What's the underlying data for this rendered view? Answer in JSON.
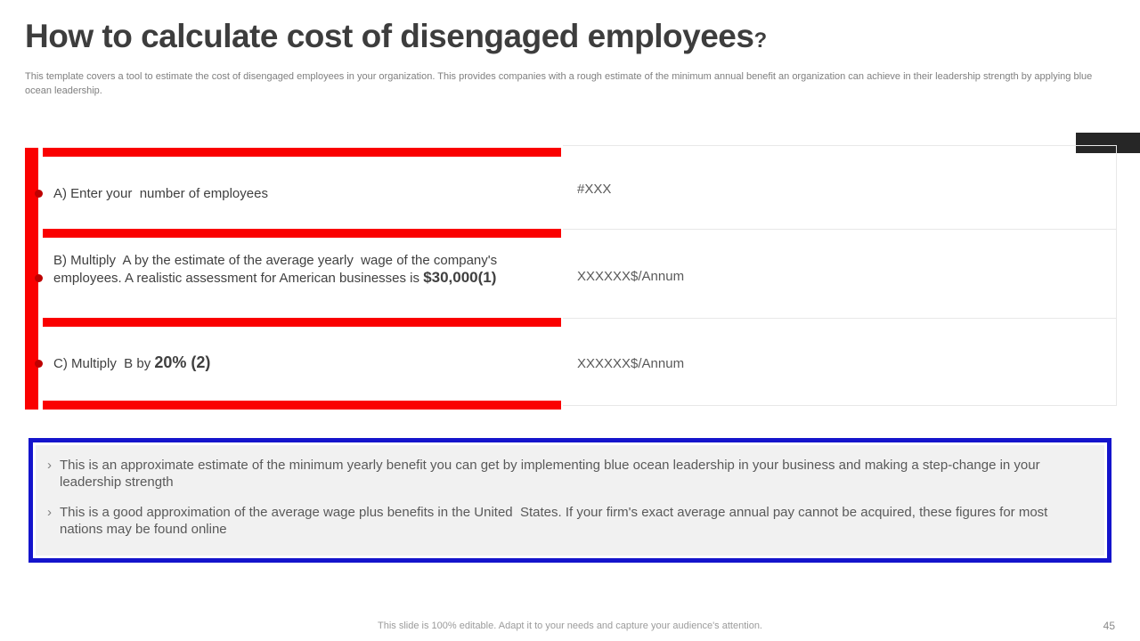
{
  "slide": {
    "title": "How to calculate cost of disengaged employees",
    "title_question_mark": "?",
    "subtitle": "This template covers a tool to estimate the cost of disengaged employees in your organization. This provides companies with a rough estimate of the minimum annual benefit an organization can achieve in their leadership strength by  applying blue ocean leadership.",
    "footer_note": "This slide is 100% editable. Adapt it to your needs and capture your audience's attention.",
    "page_number": "45"
  },
  "calculator_table": {
    "rows": [
      {
        "label_prefix": "A) Enter your  number of employees",
        "label_bold": "",
        "value": "#XXX"
      },
      {
        "label_prefix": "B) Multiply  A by the estimate of the average yearly  wage of the company's employees. A realistic assessment for American businesses is ",
        "label_bold": "$30,000(1)",
        "value": "XXXXXX$/Annum"
      },
      {
        "label_prefix": "C) Multiply  B by ",
        "label_bold": "20% (2)",
        "value": "XXXXXX$/Annum"
      }
    ]
  },
  "notes_box": {
    "items": [
      {
        "marker": "›",
        "text": "This is an approximate estimate of the minimum yearly benefit you can get by implementing blue ocean leadership in your business and making a step-change in your leadership strength"
      },
      {
        "marker": "›",
        "text": "This is a good approximation of the average wage plus benefits in the United  States. If your firm's exact average annual pay cannot be acquired, these figures for most nations may be found online"
      }
    ]
  },
  "colors": {
    "accent_red": "#fa0000",
    "bullet_red": "#be0000",
    "accent_blue": "#1414cc",
    "dark_block": "#262626",
    "title_text": "#3d3d3d",
    "body_text": "#595959",
    "muted_text": "#7f7f7f",
    "divider": "#e8e8e8",
    "notes_background": "#f1f1f1"
  }
}
